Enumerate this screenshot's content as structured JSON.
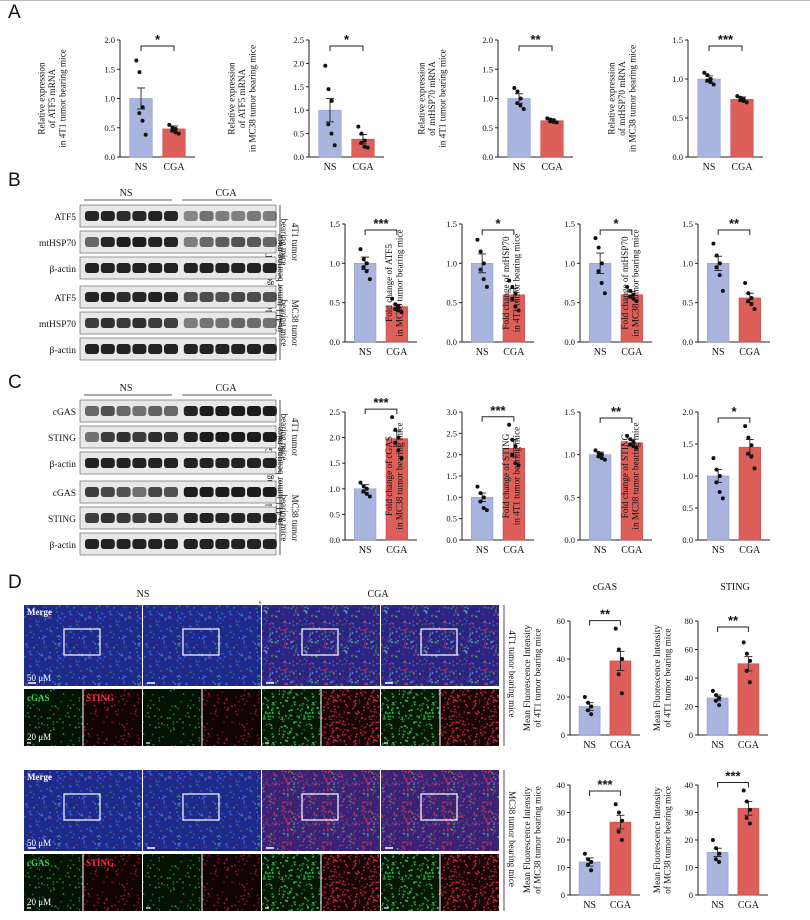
{
  "panels": {
    "A": "A",
    "B": "B",
    "C": "C",
    "D": "D"
  },
  "colors": {
    "ns": "#a9b5df",
    "cga": "#dd5f5a",
    "ns_border": "#8e9ccf",
    "cga_border": "#c9494a"
  },
  "groups": {
    "ns": "NS",
    "cga": "CGA"
  },
  "blot_B": {
    "labels": [
      "ATF5",
      "mtHSP70",
      "β-actin",
      "ATF5",
      "mtHSP70",
      "β-actin"
    ],
    "side": [
      [
        "4T1 tumor",
        "bearing mice"
      ],
      [
        "MC38 tumor",
        "bearing mice"
      ]
    ]
  },
  "blot_C": {
    "labels": [
      "cGAS",
      "STING",
      "β-actin",
      "cGAS",
      "STING",
      "β-actin"
    ],
    "side": [
      [
        "4T1 tumor",
        "bearing mice"
      ],
      [
        "MC38 tumor",
        "bearing mice"
      ]
    ]
  },
  "imaging_D": {
    "merge": "Merge",
    "scale_main": "50 μM",
    "scale_split": "20 μM",
    "channel_green": "cGAS",
    "channel_red": "STING",
    "side": [
      "4T1 tumor bearing mice",
      "MC38 tumor bearing mice"
    ],
    "titles": [
      "cGAS",
      "STING"
    ]
  },
  "chart_data": [
    {
      "type": "bar",
      "panel": "A",
      "ylabel": [
        "Relative expression",
        "of ATF5 mRNA",
        "in 4T1 tumor bearing mice"
      ],
      "categories": [
        "NS",
        "CGA"
      ],
      "values": [
        1.0,
        0.48
      ],
      "errors": [
        0.18,
        0.05
      ],
      "ylim": [
        0,
        2.0
      ],
      "ticks": [
        0,
        0.5,
        1.0,
        1.5,
        2.0
      ],
      "significance": "*",
      "points": [
        [
          1.65,
          1.45,
          0.85,
          0.75,
          0.62,
          0.38
        ],
        [
          0.55,
          0.5,
          0.48,
          0.45,
          0.42,
          0.4
        ]
      ]
    },
    {
      "type": "bar",
      "panel": "A",
      "ylabel": [
        "Relative expression",
        "of ATF5 mRNA",
        "in MC38 tumor bearing mice"
      ],
      "categories": [
        "NS",
        "CGA"
      ],
      "values": [
        1.0,
        0.38
      ],
      "errors": [
        0.25,
        0.1
      ],
      "ylim": [
        0,
        2.5
      ],
      "ticks": [
        0,
        0.5,
        1.0,
        1.5,
        2.0,
        2.5
      ],
      "significance": "*",
      "points": [
        [
          1.95,
          1.45,
          1.2,
          0.7,
          0.5,
          0.25
        ],
        [
          0.65,
          0.5,
          0.35,
          0.3,
          0.22,
          0.2
        ]
      ]
    },
    {
      "type": "bar",
      "panel": "A",
      "ylabel": [
        "Relative expression",
        "of mtHSP70 mRNA",
        "in 4T1 tumor bearing mice"
      ],
      "categories": [
        "NS",
        "CGA"
      ],
      "values": [
        1.0,
        0.62
      ],
      "errors": [
        0.08,
        0.02
      ],
      "ylim": [
        0,
        2.0
      ],
      "ticks": [
        0,
        0.5,
        1.0,
        1.5,
        2.0
      ],
      "significance": "**",
      "points": [
        [
          1.18,
          1.12,
          1.0,
          0.92,
          0.88,
          0.82
        ],
        [
          0.66,
          0.64,
          0.63,
          0.61,
          0.6,
          0.59
        ]
      ]
    },
    {
      "type": "bar",
      "panel": "A",
      "ylabel": [
        "Relative expression",
        "of mtHSP70 mRNA",
        "in MC38 tumor bearing mice"
      ],
      "categories": [
        "NS",
        "CGA"
      ],
      "values": [
        1.0,
        0.74
      ],
      "errors": [
        0.04,
        0.03
      ],
      "ylim": [
        0,
        1.5
      ],
      "ticks": [
        0,
        0.5,
        1.0,
        1.5
      ],
      "significance": "***",
      "points": [
        [
          1.08,
          1.05,
          1.0,
          0.98,
          0.96,
          0.93
        ],
        [
          0.78,
          0.76,
          0.74,
          0.73,
          0.72,
          0.7
        ]
      ]
    },
    {
      "type": "bar",
      "panel": "B",
      "ylabel": [
        "Fold change of ATF5",
        "in 4T1 tumor bearing mice"
      ],
      "categories": [
        "NS",
        "CGA"
      ],
      "values": [
        1.0,
        0.45
      ],
      "errors": [
        0.08,
        0.03
      ],
      "ylim": [
        0,
        1.5
      ],
      "ticks": [
        0,
        0.5,
        1.0,
        1.5
      ],
      "significance": "***",
      "points": [
        [
          1.18,
          1.05,
          1.0,
          0.95,
          0.9,
          0.8
        ],
        [
          0.55,
          0.48,
          0.45,
          0.42,
          0.4,
          0.38
        ]
      ]
    },
    {
      "type": "bar",
      "panel": "B",
      "ylabel": [
        "Fold change of ATF5",
        "in MC38 tumor bearing mice"
      ],
      "categories": [
        "NS",
        "CGA"
      ],
      "values": [
        1.0,
        0.6
      ],
      "errors": [
        0.12,
        0.08
      ],
      "ylim": [
        0,
        1.5
      ],
      "ticks": [
        0,
        0.5,
        1.0,
        1.5
      ],
      "significance": "*",
      "points": [
        [
          1.3,
          1.15,
          1.0,
          0.92,
          0.8,
          0.7
        ],
        [
          0.78,
          0.7,
          0.62,
          0.55,
          0.45,
          0.4
        ]
      ]
    },
    {
      "type": "bar",
      "panel": "B",
      "ylabel": [
        "Fold change of mtHSP70",
        "in 4T1 tumor bearing mice"
      ],
      "categories": [
        "NS",
        "CGA"
      ],
      "values": [
        1.0,
        0.6
      ],
      "errors": [
        0.13,
        0.04
      ],
      "ylim": [
        0,
        1.5
      ],
      "ticks": [
        0,
        0.5,
        1.0,
        1.5
      ],
      "significance": "*",
      "points": [
        [
          1.32,
          1.2,
          1.0,
          0.9,
          0.75,
          0.62
        ],
        [
          0.7,
          0.65,
          0.6,
          0.58,
          0.55,
          0.52
        ]
      ]
    },
    {
      "type": "bar",
      "panel": "B",
      "ylabel": [
        "Fold change of mtHSP70",
        "in MC38 tumor bearing mice"
      ],
      "categories": [
        "NS",
        "CGA"
      ],
      "values": [
        1.0,
        0.56
      ],
      "errors": [
        0.09,
        0.06
      ],
      "ylim": [
        0,
        1.5
      ],
      "ticks": [
        0,
        0.5,
        1.0,
        1.5
      ],
      "significance": "**",
      "points": [
        [
          1.25,
          1.1,
          1.0,
          0.95,
          0.85,
          0.65
        ],
        [
          0.75,
          0.62,
          0.56,
          0.52,
          0.48,
          0.42
        ]
      ]
    },
    {
      "type": "bar",
      "panel": "C",
      "ylabel": [
        "Fold change of cGAS",
        "in 4T1 tumor bearing mice"
      ],
      "categories": [
        "NS",
        "CGA"
      ],
      "values": [
        1.0,
        1.98
      ],
      "errors": [
        0.08,
        0.15
      ],
      "ylim": [
        0,
        2.5
      ],
      "ticks": [
        0,
        0.5,
        1.0,
        1.5,
        2.0,
        2.5
      ],
      "significance": "***",
      "points": [
        [
          1.12,
          1.05,
          1.0,
          0.95,
          0.9,
          0.85
        ],
        [
          2.4,
          2.15,
          2.0,
          1.9,
          1.75,
          1.6
        ]
      ]
    },
    {
      "type": "bar",
      "panel": "C",
      "ylabel": [
        "Fold change of cGAS",
        "in MC38 tumor bearing mice"
      ],
      "categories": [
        "NS",
        "CGA"
      ],
      "values": [
        1.0,
        2.15
      ],
      "errors": [
        0.1,
        0.2
      ],
      "ylim": [
        0,
        3.0
      ],
      "ticks": [
        0,
        0.5,
        1.0,
        1.5,
        2.0,
        2.5,
        3.0
      ],
      "significance": "***",
      "points": [
        [
          1.25,
          1.1,
          1.0,
          0.9,
          0.75,
          0.7
        ],
        [
          2.7,
          2.35,
          2.2,
          2.0,
          1.8,
          1.75
        ]
      ]
    },
    {
      "type": "bar",
      "panel": "C",
      "ylabel": [
        "Fold change of STING",
        "in 4T1 tumor bearing mice"
      ],
      "categories": [
        "NS",
        "CGA"
      ],
      "values": [
        1.0,
        1.14
      ],
      "errors": [
        0.03,
        0.04
      ],
      "ylim": [
        0,
        1.5
      ],
      "ticks": [
        0,
        0.5,
        1.0,
        1.5
      ],
      "significance": "**",
      "points": [
        [
          1.05,
          1.02,
          1.0,
          0.98,
          0.96,
          0.94
        ],
        [
          1.22,
          1.18,
          1.15,
          1.12,
          1.1,
          1.08
        ]
      ]
    },
    {
      "type": "bar",
      "panel": "C",
      "ylabel": [
        "Fold change of STING",
        "in MC38 tumor bearing mice"
      ],
      "categories": [
        "NS",
        "CGA"
      ],
      "values": [
        1.0,
        1.45
      ],
      "errors": [
        0.1,
        0.12
      ],
      "ylim": [
        0,
        2.0
      ],
      "ticks": [
        0,
        0.5,
        1.0,
        1.5,
        2.0
      ],
      "significance": "*",
      "points": [
        [
          1.28,
          1.1,
          1.0,
          0.9,
          0.75,
          0.65
        ],
        [
          1.78,
          1.6,
          1.48,
          1.35,
          1.3,
          1.12
        ]
      ]
    },
    {
      "type": "bar",
      "panel": "D",
      "ylabel": [
        "Mean Fluorescence Intensity",
        "of 4T1 tumor bearing mice"
      ],
      "categories": [
        "NS",
        "CGA"
      ],
      "values": [
        15,
        39
      ],
      "errors": [
        2,
        5
      ],
      "ylim": [
        0,
        60
      ],
      "ticks": [
        0,
        20,
        40,
        60
      ],
      "significance": "**",
      "points": [
        [
          20,
          17,
          15,
          13,
          11
        ],
        [
          56,
          45,
          40,
          32,
          22
        ]
      ]
    },
    {
      "type": "bar",
      "panel": "D",
      "ylabel": [
        "Mean Fluorescence Intensity",
        "of 4T1 tumor bearing mice"
      ],
      "categories": [
        "NS",
        "CGA"
      ],
      "values": [
        26,
        50
      ],
      "errors": [
        2,
        5
      ],
      "ylim": [
        0,
        80
      ],
      "ticks": [
        0,
        20,
        40,
        60,
        80
      ],
      "significance": "**",
      "points": [
        [
          31,
          28,
          26,
          24,
          21
        ],
        [
          65,
          57,
          52,
          45,
          37
        ]
      ]
    },
    {
      "type": "bar",
      "panel": "D",
      "ylabel": [
        "Mean Fluorescence Intensity",
        "of MC38 tumor bearing mice"
      ],
      "categories": [
        "NS",
        "CGA"
      ],
      "values": [
        12,
        26.5
      ],
      "errors": [
        1.5,
        2.5
      ],
      "ylim": [
        0,
        40
      ],
      "ticks": [
        0,
        10,
        20,
        30,
        40
      ],
      "significance": "***",
      "points": [
        [
          15,
          13,
          12,
          11,
          9
        ],
        [
          33,
          30,
          27,
          23,
          20
        ]
      ]
    },
    {
      "type": "bar",
      "panel": "D",
      "ylabel": [
        "Mean Fluorescence Intensity",
        "of MC38 tumor bearing mice"
      ],
      "categories": [
        "NS",
        "CGA"
      ],
      "values": [
        15.5,
        31.5
      ],
      "errors": [
        1.5,
        2.5
      ],
      "ylim": [
        0,
        40
      ],
      "ticks": [
        0,
        10,
        20,
        30,
        40
      ],
      "significance": "***",
      "points": [
        [
          20,
          17,
          15,
          13,
          12
        ],
        [
          38,
          34,
          31,
          28,
          26
        ]
      ]
    }
  ]
}
